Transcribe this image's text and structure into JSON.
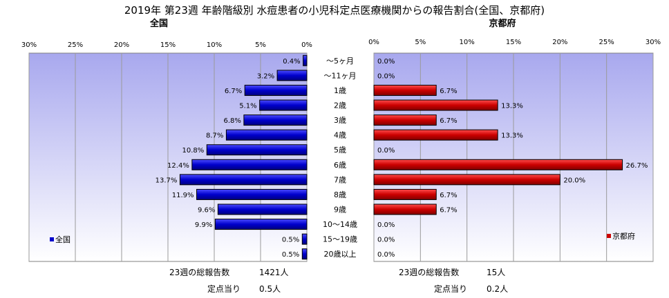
{
  "chart_data": {
    "type": "bar",
    "title": "2019年 第23週 年齢階級別 水痘患者の小児科定点医療機関からの報告割合(全国、京都府)",
    "categories": [
      "～5ヶ月",
      "～11ヶ月",
      "1歳",
      "2歳",
      "3歳",
      "4歳",
      "5歳",
      "6歳",
      "7歳",
      "8歳",
      "9歳",
      "10～14歳",
      "15～19歳",
      "20歳以上"
    ],
    "axis_ticks": [
      "0%",
      "5%",
      "10%",
      "15%",
      "20%",
      "25%",
      "30%"
    ],
    "xlim": [
      0,
      30
    ],
    "orientation": "horizontal",
    "grid": true,
    "series": [
      {
        "name": "全国",
        "panel_title": "全国",
        "color": "#0000cc",
        "values": [
          0.4,
          3.2,
          6.7,
          5.1,
          6.8,
          8.7,
          10.8,
          12.4,
          13.7,
          11.9,
          9.6,
          9.9,
          0.5,
          0.5
        ],
        "labels": [
          "0.4%",
          "3.2%",
          "6.7%",
          "5.1%",
          "6.8%",
          "8.7%",
          "10.8%",
          "12.4%",
          "13.7%",
          "11.9%",
          "9.6%",
          "9.9%",
          "0.5%",
          "0.5%"
        ],
        "legend": "全国",
        "legend_position": "bottom-left"
      },
      {
        "name": "京都府",
        "panel_title": "京都府",
        "color": "#cc0000",
        "values": [
          0.0,
          0.0,
          6.7,
          13.3,
          6.7,
          13.3,
          0.0,
          26.7,
          20.0,
          6.7,
          6.7,
          0.0,
          0.0,
          0.0
        ],
        "labels": [
          "0.0%",
          "0.0%",
          "6.7%",
          "13.3%",
          "6.7%",
          "13.3%",
          "0.0%",
          "26.7%",
          "20.0%",
          "6.7%",
          "6.7%",
          "0.0%",
          "0.0%",
          "0.0%"
        ],
        "legend": "京都府",
        "legend_position": "bottom-right"
      }
    ]
  },
  "summary": {
    "national": {
      "total_label": "23週の総報告数",
      "total_value": "1421人",
      "per_label": "定点当り",
      "per_value": "0.5人"
    },
    "kyoto": {
      "total_label": "23週の総報告数",
      "total_value": "15人",
      "per_label": "定点当り",
      "per_value": "0.2人"
    }
  },
  "colors": {
    "plot_bg_top": "#a8a8ee",
    "plot_bg_bottom": "#ffffff",
    "grid": "#9a9a9a"
  }
}
